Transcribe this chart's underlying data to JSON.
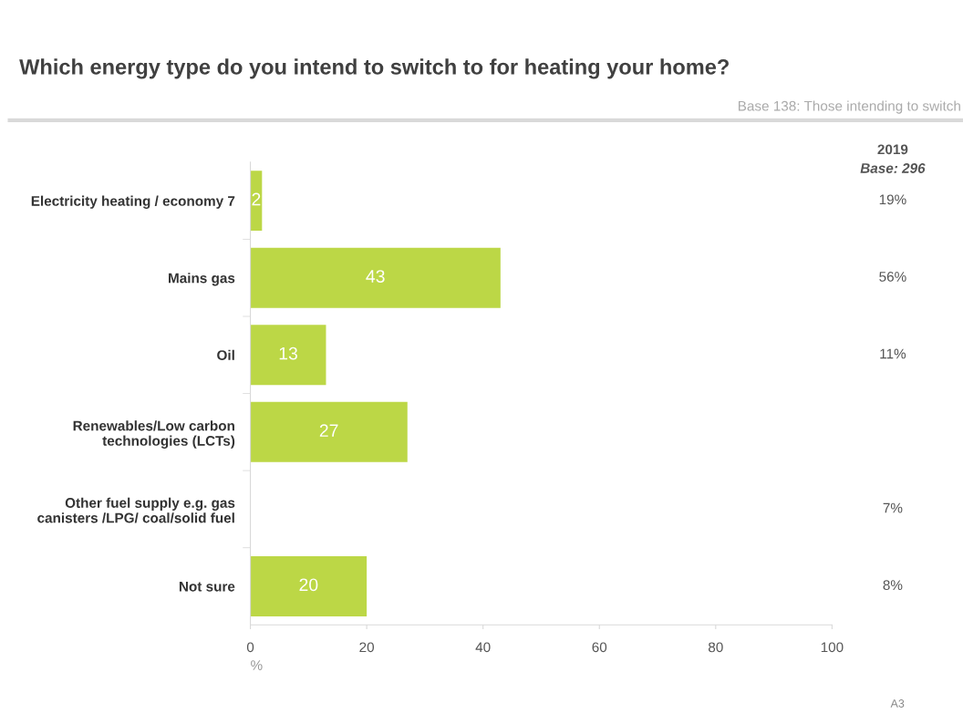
{
  "chart_data": {
    "type": "bar",
    "orientation": "horizontal",
    "title": "Which energy type do you intend to switch to for heating your home?",
    "subtitle": "Base 138: Those intending to switch",
    "xlabel": "%",
    "categories": [
      "Electricity heating / economy 7",
      "Mains gas",
      "Oil",
      "Renewables/Low carbon\ntechnologies (LCTs)",
      "Other fuel supply e.g. gas\ncanisters /LPG/ coal/solid fuel",
      "Not sure"
    ],
    "values": [
      2,
      43,
      13,
      27,
      null,
      20
    ],
    "color": "#bcd746",
    "data_labels": true,
    "xlim": [
      0,
      100
    ],
    "xticks": [
      0,
      20,
      40,
      60,
      80,
      100
    ],
    "grid": false,
    "legend": false,
    "annotations": [
      "2019",
      "Base: 296",
      "19%",
      "56%",
      "11%",
      "7%",
      "8%",
      "A3"
    ]
  }
}
